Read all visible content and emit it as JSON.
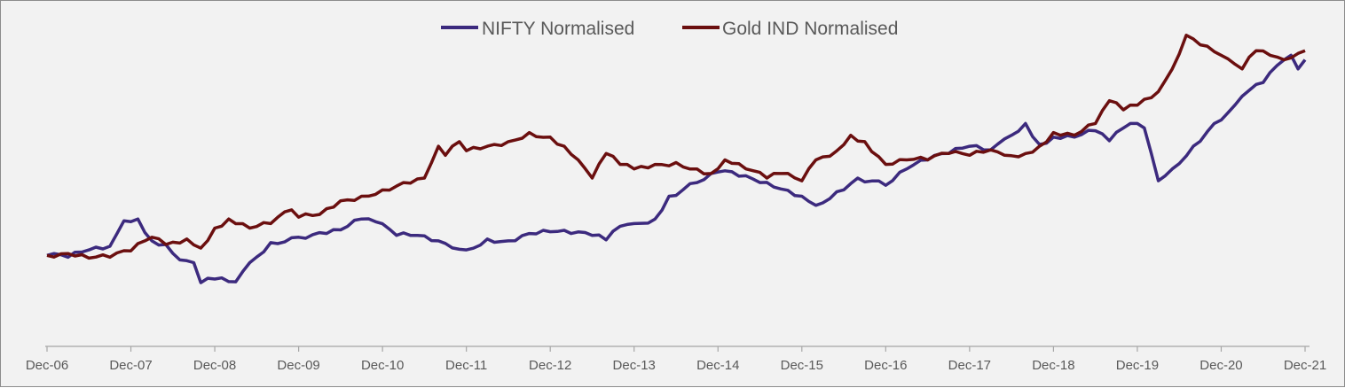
{
  "chart_data": {
    "type": "line",
    "title": "",
    "xlabel": "",
    "ylabel": "",
    "x_tick_labels": [
      "Dec-06",
      "Dec-07",
      "Dec-08",
      "Dec-09",
      "Dec-10",
      "Dec-11",
      "Dec-12",
      "Dec-13",
      "Dec-14",
      "Dec-15",
      "Dec-16",
      "Dec-17",
      "Dec-18",
      "Dec-19",
      "Dec-20",
      "Dec-21"
    ],
    "x_range": [
      "2006-12",
      "2021-12"
    ],
    "y_axis_visible": false,
    "ylim": [
      0,
      3.7
    ],
    "grid": false,
    "legend_position": "top-center",
    "series": [
      {
        "name": "NIFTY Normalised",
        "color": "#3c2a7e",
        "points": [
          [
            "2006-12",
            1.0
          ],
          [
            "2007-03",
            0.98
          ],
          [
            "2007-06",
            1.06
          ],
          [
            "2007-09",
            1.1
          ],
          [
            "2007-11",
            1.38
          ],
          [
            "2008-01",
            1.4
          ],
          [
            "2008-03",
            1.16
          ],
          [
            "2008-05",
            1.12
          ],
          [
            "2008-07",
            0.95
          ],
          [
            "2008-09",
            0.92
          ],
          [
            "2008-10",
            0.7
          ],
          [
            "2008-12",
            0.74
          ],
          [
            "2009-03",
            0.71
          ],
          [
            "2009-05",
            0.92
          ],
          [
            "2009-08",
            1.14
          ],
          [
            "2009-12",
            1.2
          ],
          [
            "2010-03",
            1.25
          ],
          [
            "2010-06",
            1.28
          ],
          [
            "2010-09",
            1.4
          ],
          [
            "2010-11",
            1.37
          ],
          [
            "2011-02",
            1.22
          ],
          [
            "2011-05",
            1.22
          ],
          [
            "2011-08",
            1.16
          ],
          [
            "2011-12",
            1.06
          ],
          [
            "2012-03",
            1.18
          ],
          [
            "2012-06",
            1.16
          ],
          [
            "2012-09",
            1.24
          ],
          [
            "2012-12",
            1.26
          ],
          [
            "2013-03",
            1.24
          ],
          [
            "2013-06",
            1.22
          ],
          [
            "2013-08",
            1.17
          ],
          [
            "2013-10",
            1.32
          ],
          [
            "2013-12",
            1.35
          ],
          [
            "2014-03",
            1.4
          ],
          [
            "2014-05",
            1.65
          ],
          [
            "2014-09",
            1.8
          ],
          [
            "2014-11",
            1.9
          ],
          [
            "2015-01",
            1.93
          ],
          [
            "2015-03",
            1.87
          ],
          [
            "2015-06",
            1.8
          ],
          [
            "2015-09",
            1.73
          ],
          [
            "2015-12",
            1.65
          ],
          [
            "2016-02",
            1.55
          ],
          [
            "2016-05",
            1.7
          ],
          [
            "2016-08",
            1.85
          ],
          [
            "2016-12",
            1.77
          ],
          [
            "2017-03",
            1.95
          ],
          [
            "2017-06",
            2.05
          ],
          [
            "2017-09",
            2.12
          ],
          [
            "2017-12",
            2.2
          ],
          [
            "2018-03",
            2.16
          ],
          [
            "2018-05",
            2.28
          ],
          [
            "2018-08",
            2.45
          ],
          [
            "2018-10",
            2.22
          ],
          [
            "2018-12",
            2.3
          ],
          [
            "2019-03",
            2.3
          ],
          [
            "2019-06",
            2.37
          ],
          [
            "2019-08",
            2.26
          ],
          [
            "2019-11",
            2.45
          ],
          [
            "2020-01",
            2.4
          ],
          [
            "2020-03",
            1.82
          ],
          [
            "2020-05",
            1.95
          ],
          [
            "2020-08",
            2.2
          ],
          [
            "2020-11",
            2.45
          ],
          [
            "2021-01",
            2.57
          ],
          [
            "2021-03",
            2.75
          ],
          [
            "2021-06",
            2.9
          ],
          [
            "2021-09",
            3.15
          ],
          [
            "2021-10",
            3.2
          ],
          [
            "2021-11",
            3.05
          ],
          [
            "2021-12",
            3.15
          ]
        ]
      },
      {
        "name": "Gold IND Normalised",
        "color": "#6b0f0f",
        "points": [
          [
            "2006-12",
            1.0
          ],
          [
            "2007-03",
            1.02
          ],
          [
            "2007-06",
            0.97
          ],
          [
            "2007-09",
            0.98
          ],
          [
            "2007-12",
            1.05
          ],
          [
            "2008-03",
            1.2
          ],
          [
            "2008-05",
            1.12
          ],
          [
            "2008-08",
            1.18
          ],
          [
            "2008-10",
            1.08
          ],
          [
            "2008-12",
            1.3
          ],
          [
            "2009-02",
            1.4
          ],
          [
            "2009-05",
            1.3
          ],
          [
            "2009-08",
            1.35
          ],
          [
            "2009-11",
            1.5
          ],
          [
            "2009-12",
            1.42
          ],
          [
            "2010-03",
            1.45
          ],
          [
            "2010-06",
            1.6
          ],
          [
            "2010-09",
            1.65
          ],
          [
            "2010-12",
            1.72
          ],
          [
            "2011-03",
            1.8
          ],
          [
            "2011-06",
            1.85
          ],
          [
            "2011-08",
            2.2
          ],
          [
            "2011-09",
            2.1
          ],
          [
            "2011-11",
            2.25
          ],
          [
            "2011-12",
            2.15
          ],
          [
            "2012-03",
            2.2
          ],
          [
            "2012-06",
            2.25
          ],
          [
            "2012-09",
            2.35
          ],
          [
            "2012-12",
            2.3
          ],
          [
            "2013-02",
            2.2
          ],
          [
            "2013-04",
            2.05
          ],
          [
            "2013-06",
            1.85
          ],
          [
            "2013-08",
            2.12
          ],
          [
            "2013-10",
            2.0
          ],
          [
            "2013-12",
            1.95
          ],
          [
            "2014-03",
            2.0
          ],
          [
            "2014-06",
            2.02
          ],
          [
            "2014-09",
            1.95
          ],
          [
            "2014-11",
            1.9
          ],
          [
            "2015-01",
            2.05
          ],
          [
            "2015-04",
            1.95
          ],
          [
            "2015-07",
            1.85
          ],
          [
            "2015-09",
            1.9
          ],
          [
            "2015-12",
            1.82
          ],
          [
            "2016-02",
            2.05
          ],
          [
            "2016-05",
            2.15
          ],
          [
            "2016-07",
            2.32
          ],
          [
            "2016-09",
            2.25
          ],
          [
            "2016-12",
            2.0
          ],
          [
            "2017-03",
            2.05
          ],
          [
            "2017-06",
            2.05
          ],
          [
            "2017-09",
            2.12
          ],
          [
            "2017-12",
            2.1
          ],
          [
            "2018-03",
            2.16
          ],
          [
            "2018-05",
            2.1
          ],
          [
            "2018-08",
            2.12
          ],
          [
            "2018-10",
            2.2
          ],
          [
            "2018-12",
            2.35
          ],
          [
            "2019-03",
            2.32
          ],
          [
            "2019-06",
            2.45
          ],
          [
            "2019-08",
            2.7
          ],
          [
            "2019-10",
            2.6
          ],
          [
            "2019-12",
            2.65
          ],
          [
            "2020-03",
            2.8
          ],
          [
            "2020-05",
            3.05
          ],
          [
            "2020-07",
            3.42
          ],
          [
            "2020-08",
            3.38
          ],
          [
            "2020-10",
            3.3
          ],
          [
            "2020-12",
            3.2
          ],
          [
            "2021-02",
            3.1
          ],
          [
            "2021-03",
            3.05
          ],
          [
            "2021-05",
            3.25
          ],
          [
            "2021-07",
            3.2
          ],
          [
            "2021-09",
            3.15
          ],
          [
            "2021-11",
            3.22
          ],
          [
            "2021-12",
            3.25
          ]
        ]
      }
    ]
  }
}
